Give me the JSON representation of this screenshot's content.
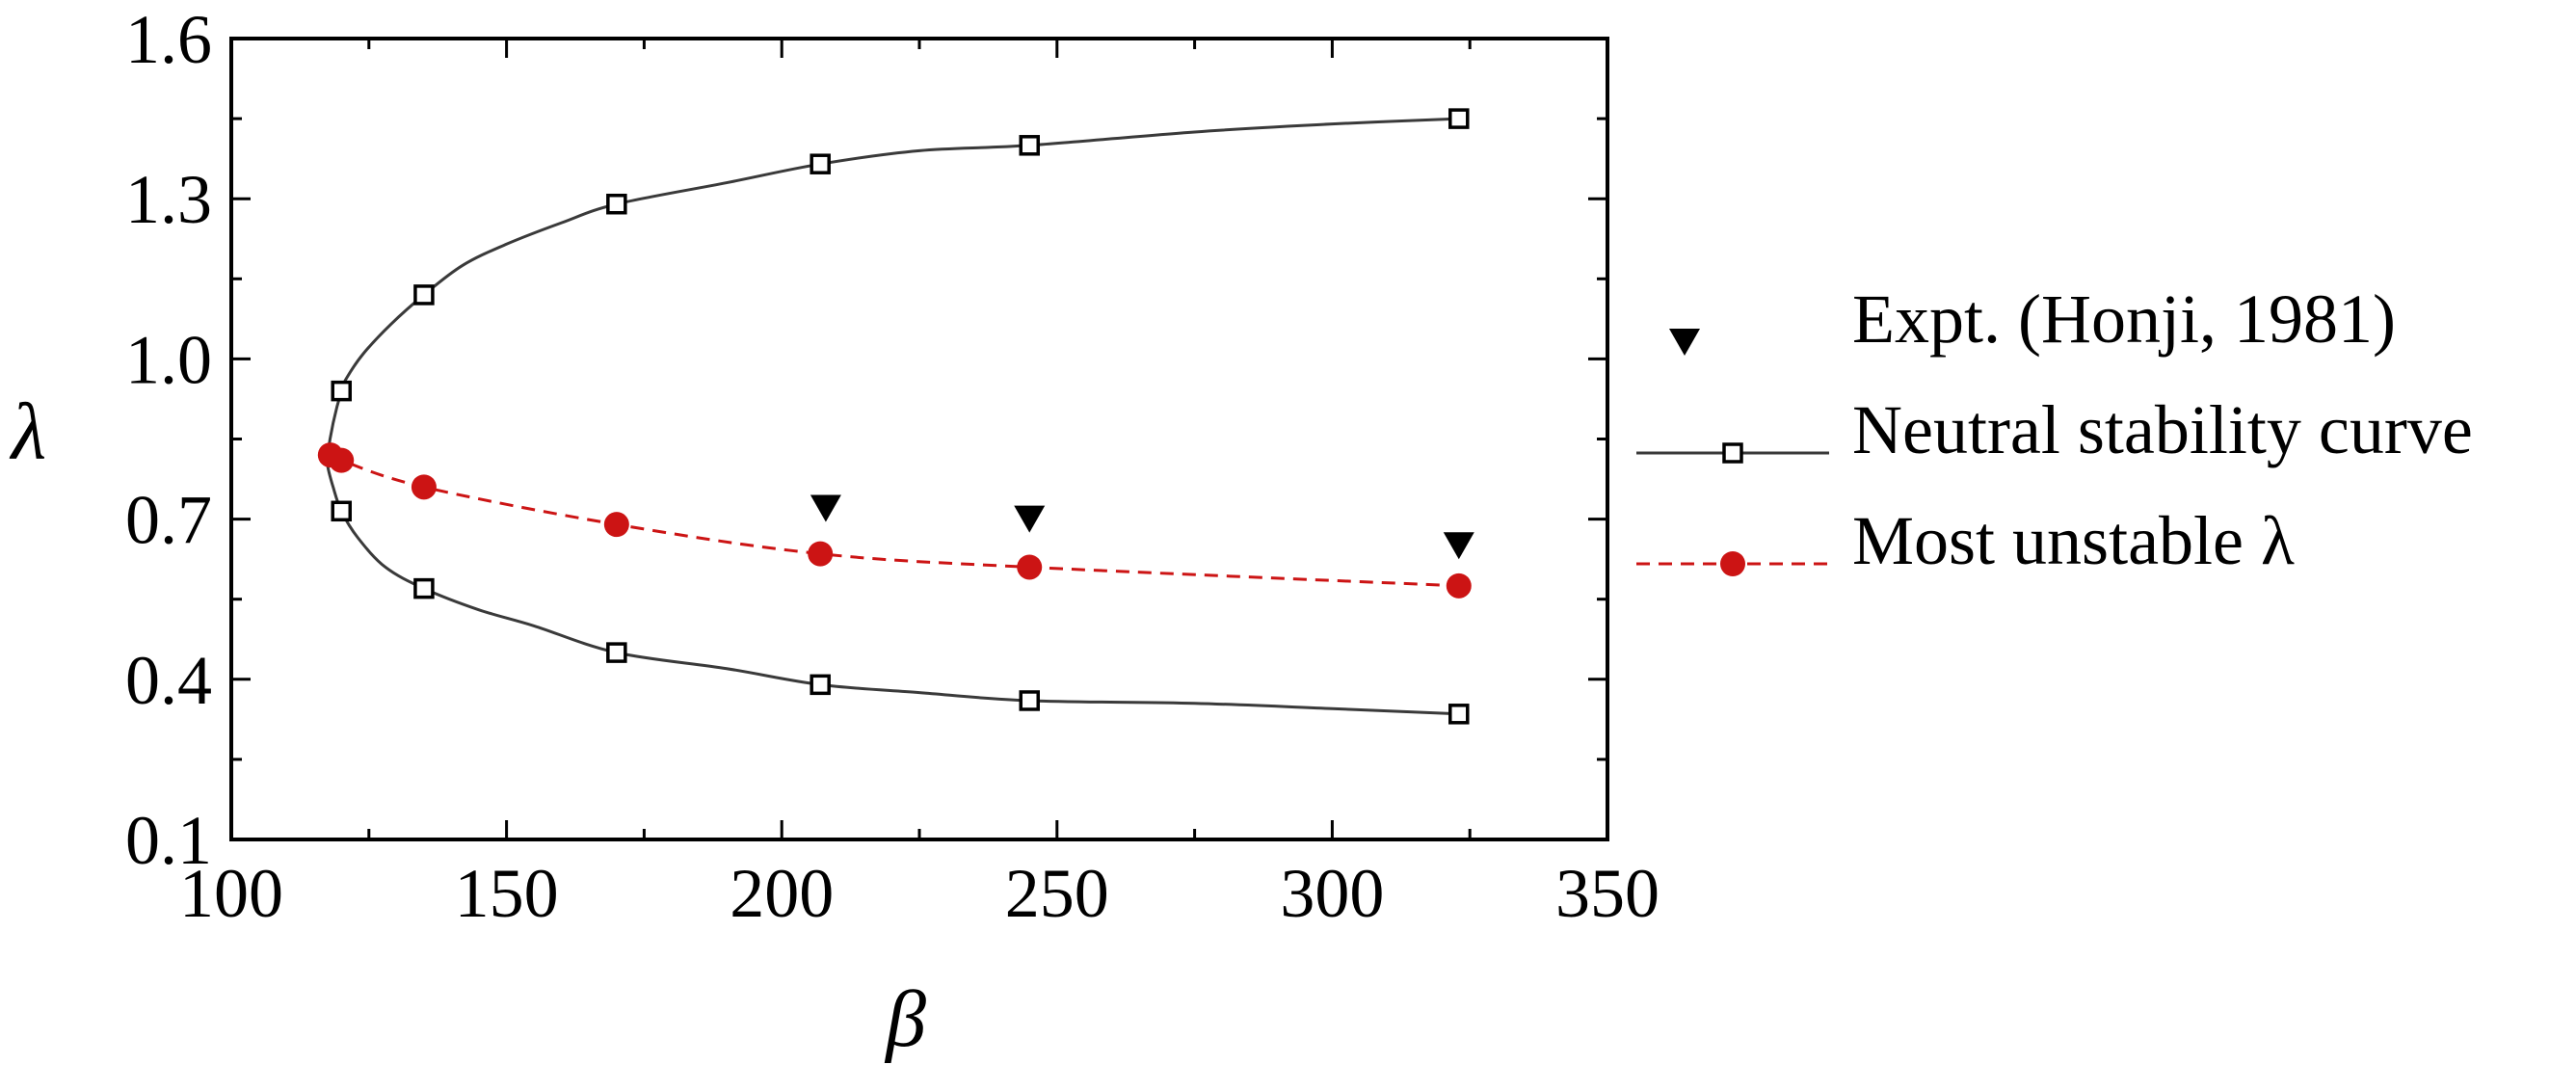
{
  "chart_data": {
    "type": "scatter",
    "title": "",
    "xlabel": "β",
    "ylabel": "λ",
    "xlim": [
      100,
      350
    ],
    "ylim": [
      0.1,
      1.6
    ],
    "xticks": [
      100,
      150,
      200,
      250,
      300,
      350
    ],
    "yticks": [
      0.1,
      0.4,
      0.7,
      1.0,
      1.3,
      1.6
    ],
    "xtick_labels": [
      "100",
      "150",
      "200",
      "250",
      "300",
      "350"
    ],
    "ytick_labels": [
      "0.1",
      "0.4",
      "0.7",
      "1.0",
      "1.3",
      "1.6"
    ],
    "grid": false,
    "legend_position": "right-outside",
    "series": [
      {
        "name": "Expt. (Honji, 1981)",
        "style": "marker-only",
        "marker": "triangle-down-filled",
        "color": "#000000",
        "x": [
          208,
          245,
          323
        ],
        "y": [
          0.72,
          0.7,
          0.65
        ]
      },
      {
        "name": "Neutral stability curve",
        "style": "line-with-markers",
        "marker": "square-open",
        "color": "#3a3a3a",
        "marker_x": [
          323,
          245,
          207,
          170,
          135,
          120,
          120,
          135,
          170,
          207,
          245,
          323
        ],
        "marker_y": [
          1.45,
          1.4,
          1.365,
          1.29,
          1.12,
          0.94,
          0.715,
          0.57,
          0.45,
          0.39,
          0.36,
          0.335
        ],
        "curve_x": [
          323,
          300,
          275,
          245,
          225,
          207,
          190,
          170,
          160,
          150,
          142,
          135,
          129,
          124,
          121,
          120,
          118.5,
          117.5,
          117.5,
          118.5,
          120,
          123,
          128,
          135,
          145,
          155,
          170,
          190,
          207,
          225,
          245,
          275,
          300,
          323
        ],
        "curve_y": [
          1.45,
          1.44,
          1.425,
          1.4,
          1.39,
          1.365,
          1.33,
          1.29,
          1.255,
          1.215,
          1.175,
          1.12,
          1.065,
          1.01,
          0.965,
          0.94,
          0.88,
          0.82,
          0.8,
          0.76,
          0.715,
          0.665,
          0.61,
          0.57,
          0.53,
          0.5,
          0.45,
          0.42,
          0.39,
          0.375,
          0.36,
          0.355,
          0.345,
          0.335
        ]
      },
      {
        "name": "Most unstable λ",
        "style": "dashed-line-with-markers",
        "marker": "circle-filled",
        "color": "#cc1414",
        "x": [
          118,
          120,
          135,
          170,
          207,
          245,
          323
        ],
        "y": [
          0.82,
          0.81,
          0.76,
          0.69,
          0.635,
          0.61,
          0.575
        ]
      }
    ]
  }
}
